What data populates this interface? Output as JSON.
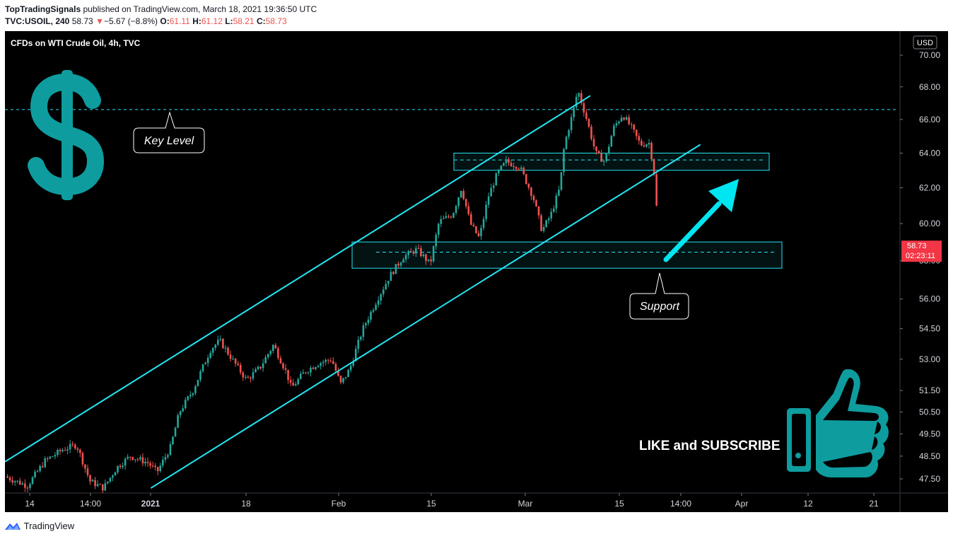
{
  "header": {
    "author": "TopTradingSignals",
    "published_text": "published on TradingView.com, March 18, 2021 19:36:50 UTC",
    "symbol": "TVC:USOIL, 240",
    "last": "58.73",
    "arrow": "▼",
    "change": "−5.67 (−8.8%)",
    "o_label": "O:",
    "o_value": "61.11",
    "h_label": "H:",
    "h_value": "61.12",
    "l_label": "L:",
    "l_value": "58.21",
    "c_label": "C:",
    "c_value": "58.73"
  },
  "footer": {
    "brand": "TradingView",
    "logo_icon": "tradingview-logo-icon"
  },
  "colors": {
    "background": "#000000",
    "up": "#26a69a",
    "down": "#ef5350",
    "channel": "#26e5f2",
    "accent_teal": "#0e9c9f",
    "price_tag": "#f23645"
  },
  "chart_data": {
    "type": "candlestick",
    "title": "CFDs on WTI Crude Oil, 4h, TVC",
    "currency": "USD",
    "price_axis": {
      "scale": "log",
      "range": [
        47.0,
        71.0
      ],
      "ticks": [
        "70.00",
        "68.00",
        "66.00",
        "64.00",
        "62.00",
        "60.00",
        "58.00",
        "56.00",
        "54.50",
        "53.00",
        "51.50",
        "50.50",
        "49.50",
        "48.50",
        "47.50"
      ]
    },
    "time_axis": {
      "ticks": [
        "14",
        "14:00",
        "2021",
        "18",
        "Feb",
        "15",
        "Mar",
        "15",
        "14:00",
        "Apr",
        "12",
        "21"
      ]
    },
    "last_price": {
      "value": "58.73",
      "countdown": "02:23:11"
    },
    "key_level": {
      "price": 66.6,
      "label": "Key Level"
    },
    "resistance_zone": {
      "from": 63.0,
      "to": 64.0,
      "midline": 63.6
    },
    "support_zone": {
      "from": 57.6,
      "to": 59.0,
      "midline": 58.45,
      "label": "Support"
    },
    "channel": {
      "upper": {
        "from": {
          "t": 0.0,
          "price": 48.25
        },
        "to": {
          "t": 0.654,
          "price": 67.45
        }
      },
      "lower": {
        "from": {
          "t": 0.163,
          "price": 47.1
        },
        "to": {
          "t": 0.777,
          "price": 64.5
        }
      }
    },
    "annotations": {
      "arrow_direction": "up",
      "banner": "LIKE and SUBSCRIBE",
      "dollar_icon": "dollar-sign-icon",
      "thumb_icon": "thumbs-up-icon"
    },
    "series_points": [
      [
        0.0,
        47.6
      ],
      [
        0.025,
        47.2
      ],
      [
        0.045,
        48.3
      ],
      [
        0.065,
        48.8
      ],
      [
        0.08,
        49.0
      ],
      [
        0.095,
        47.4
      ],
      [
        0.11,
        47.1
      ],
      [
        0.125,
        48.0
      ],
      [
        0.14,
        48.5
      ],
      [
        0.16,
        48.2
      ],
      [
        0.17,
        47.8
      ],
      [
        0.185,
        48.9
      ],
      [
        0.195,
        50.5
      ],
      [
        0.21,
        51.5
      ],
      [
        0.23,
        53.5
      ],
      [
        0.24,
        53.9
      ],
      [
        0.26,
        52.6
      ],
      [
        0.27,
        52.0
      ],
      [
        0.285,
        52.6
      ],
      [
        0.3,
        53.7
      ],
      [
        0.315,
        52.3
      ],
      [
        0.32,
        51.6
      ],
      [
        0.335,
        52.4
      ],
      [
        0.35,
        52.8
      ],
      [
        0.365,
        53.0
      ],
      [
        0.375,
        51.8
      ],
      [
        0.385,
        52.5
      ],
      [
        0.4,
        54.5
      ],
      [
        0.415,
        55.9
      ],
      [
        0.43,
        57.2
      ],
      [
        0.445,
        58.2
      ],
      [
        0.46,
        58.6
      ],
      [
        0.47,
        58.1
      ],
      [
        0.475,
        57.8
      ],
      [
        0.485,
        60.1
      ],
      [
        0.5,
        60.5
      ],
      [
        0.51,
        62.0
      ],
      [
        0.52,
        60.0
      ],
      [
        0.53,
        59.2
      ],
      [
        0.54,
        61.5
      ],
      [
        0.55,
        62.8
      ],
      [
        0.56,
        63.5
      ],
      [
        0.575,
        63.2
      ],
      [
        0.59,
        61.5
      ],
      [
        0.6,
        59.6
      ],
      [
        0.61,
        60.5
      ],
      [
        0.62,
        62.0
      ],
      [
        0.625,
        64.5
      ],
      [
        0.635,
        66.5
      ],
      [
        0.64,
        67.8
      ],
      [
        0.65,
        66.0
      ],
      [
        0.66,
        64.0
      ],
      [
        0.67,
        63.5
      ],
      [
        0.68,
        65.5
      ],
      [
        0.69,
        66.3
      ],
      [
        0.7,
        65.5
      ],
      [
        0.71,
        64.5
      ],
      [
        0.72,
        64.6
      ],
      [
        0.725,
        63.0
      ],
      [
        0.728,
        61.0
      ],
      [
        0.73,
        58.73
      ]
    ]
  }
}
